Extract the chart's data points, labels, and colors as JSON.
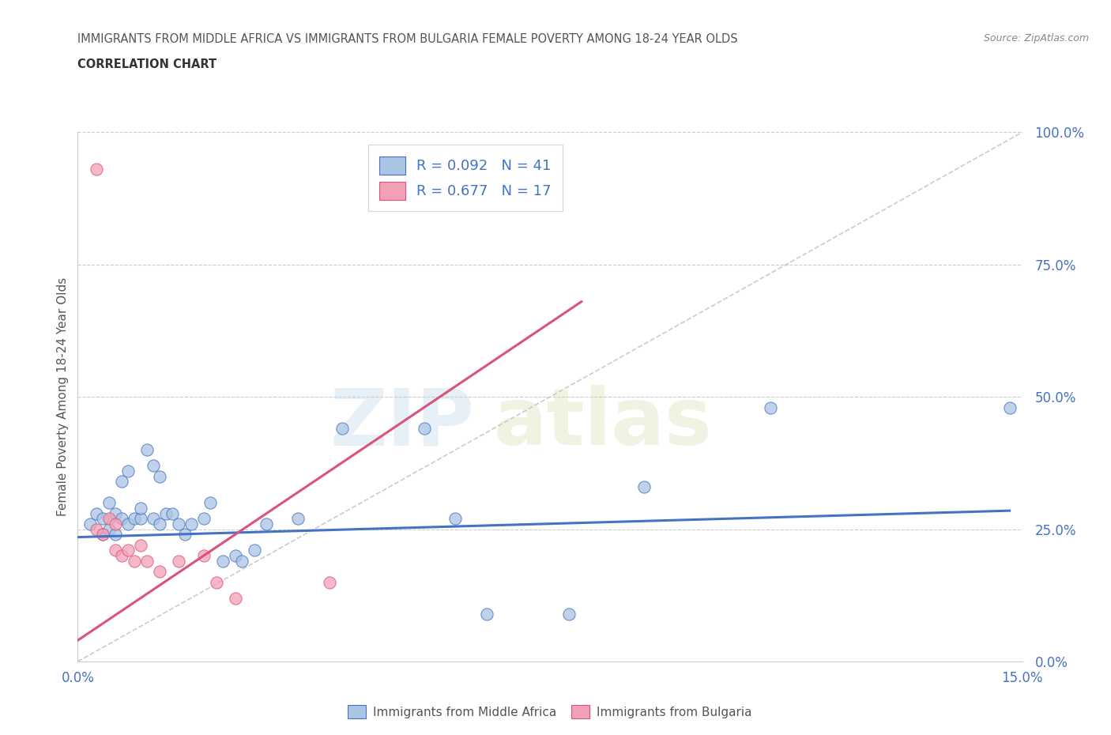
{
  "title_line1": "IMMIGRANTS FROM MIDDLE AFRICA VS IMMIGRANTS FROM BULGARIA FEMALE POVERTY AMONG 18-24 YEAR OLDS",
  "title_line2": "CORRELATION CHART",
  "source_text": "Source: ZipAtlas.com",
  "ylabel": "Female Poverty Among 18-24 Year Olds",
  "xlim": [
    0.0,
    0.15
  ],
  "ylim": [
    0.0,
    1.0
  ],
  "ytick_labels": [
    "0.0%",
    "25.0%",
    "50.0%",
    "75.0%",
    "100.0%"
  ],
  "ytick_vals": [
    0.0,
    0.25,
    0.5,
    0.75,
    1.0
  ],
  "xtick_labels": [
    "0.0%",
    "15.0%"
  ],
  "xtick_vals": [
    0.0,
    0.15
  ],
  "watermark_zip": "ZIP",
  "watermark_atlas": "atlas",
  "legend_r1": "R = 0.092",
  "legend_n1": "N = 41",
  "legend_r2": "R = 0.677",
  "legend_n2": "N = 17",
  "color_blue": "#aac4e2",
  "color_pink": "#f2a0b5",
  "line_blue": "#4472c4",
  "line_pink": "#d9547a",
  "diagonal_color": "#cccccc",
  "blue_scatter": [
    [
      0.002,
      0.26
    ],
    [
      0.003,
      0.28
    ],
    [
      0.004,
      0.24
    ],
    [
      0.004,
      0.27
    ],
    [
      0.005,
      0.25
    ],
    [
      0.005,
      0.3
    ],
    [
      0.006,
      0.24
    ],
    [
      0.006,
      0.28
    ],
    [
      0.007,
      0.34
    ],
    [
      0.007,
      0.27
    ],
    [
      0.008,
      0.36
    ],
    [
      0.008,
      0.26
    ],
    [
      0.009,
      0.27
    ],
    [
      0.01,
      0.27
    ],
    [
      0.01,
      0.29
    ],
    [
      0.011,
      0.4
    ],
    [
      0.012,
      0.37
    ],
    [
      0.012,
      0.27
    ],
    [
      0.013,
      0.35
    ],
    [
      0.013,
      0.26
    ],
    [
      0.014,
      0.28
    ],
    [
      0.015,
      0.28
    ],
    [
      0.016,
      0.26
    ],
    [
      0.017,
      0.24
    ],
    [
      0.018,
      0.26
    ],
    [
      0.02,
      0.27
    ],
    [
      0.021,
      0.3
    ],
    [
      0.023,
      0.19
    ],
    [
      0.025,
      0.2
    ],
    [
      0.026,
      0.19
    ],
    [
      0.028,
      0.21
    ],
    [
      0.03,
      0.26
    ],
    [
      0.035,
      0.27
    ],
    [
      0.042,
      0.44
    ],
    [
      0.055,
      0.44
    ],
    [
      0.06,
      0.27
    ],
    [
      0.065,
      0.09
    ],
    [
      0.078,
      0.09
    ],
    [
      0.09,
      0.33
    ],
    [
      0.11,
      0.48
    ],
    [
      0.148,
      0.48
    ]
  ],
  "pink_scatter": [
    [
      0.003,
      0.93
    ],
    [
      0.003,
      0.25
    ],
    [
      0.004,
      0.24
    ],
    [
      0.005,
      0.27
    ],
    [
      0.006,
      0.26
    ],
    [
      0.006,
      0.21
    ],
    [
      0.007,
      0.2
    ],
    [
      0.008,
      0.21
    ],
    [
      0.009,
      0.19
    ],
    [
      0.01,
      0.22
    ],
    [
      0.011,
      0.19
    ],
    [
      0.013,
      0.17
    ],
    [
      0.016,
      0.19
    ],
    [
      0.02,
      0.2
    ],
    [
      0.022,
      0.15
    ],
    [
      0.025,
      0.12
    ],
    [
      0.04,
      0.15
    ]
  ],
  "blue_trend_x": [
    0.0,
    0.148
  ],
  "blue_trend_y": [
    0.235,
    0.285
  ],
  "pink_trend_x": [
    0.0,
    0.08
  ],
  "pink_trend_y": [
    0.04,
    0.68
  ]
}
